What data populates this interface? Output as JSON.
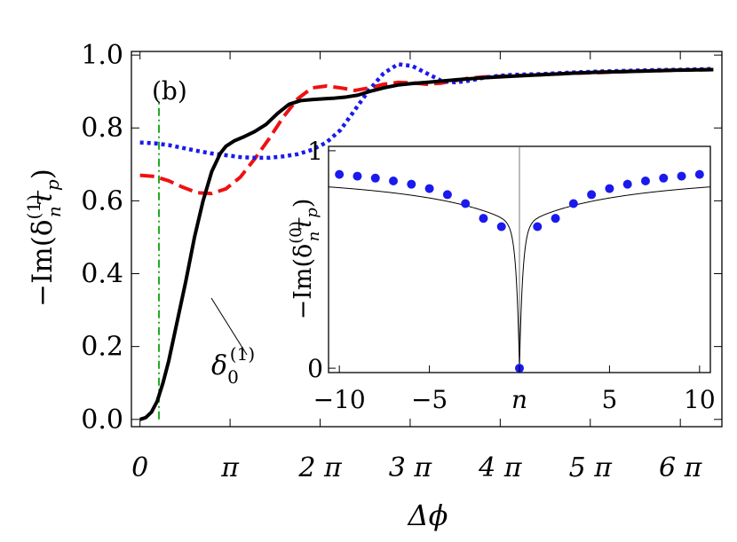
{
  "chart_data": {
    "type": "line",
    "panel_label": "(b)",
    "xlabel": "Δϕ",
    "ylabel": {
      "prefix": "−Im(δ",
      "sup": "(1)",
      "sub": "n",
      "suffix": "τ",
      "suffix_sub": "p",
      "close": ")"
    },
    "xlim": [
      -0.3,
      20.3
    ],
    "ylim": [
      -0.02,
      1.01
    ],
    "x_unit": "pi",
    "xticks": [
      {
        "value": 0,
        "label": "0"
      },
      {
        "value": 3.14159,
        "label": "π"
      },
      {
        "value": 6.28319,
        "label": "2 π"
      },
      {
        "value": 9.42478,
        "label": "3 π"
      },
      {
        "value": 12.56637,
        "label": "4 π"
      },
      {
        "value": 15.70796,
        "label": "5 π"
      },
      {
        "value": 18.84956,
        "label": "6 π"
      }
    ],
    "yticks": [
      {
        "value": 0.0,
        "label": "0.0"
      },
      {
        "value": 0.2,
        "label": "0.2"
      },
      {
        "value": 0.4,
        "label": "0.4"
      },
      {
        "value": 0.6,
        "label": "0.6"
      },
      {
        "value": 0.8,
        "label": "0.8"
      },
      {
        "value": 1.0,
        "label": "1.0"
      }
    ],
    "vline": {
      "x": 0.66,
      "color": "#22aa22",
      "style": "dashdot"
    },
    "series": [
      {
        "name": "delta0",
        "color": "#000000",
        "style": "solid",
        "x": [
          0,
          0.2,
          0.4,
          0.6,
          0.8,
          1.0,
          1.3,
          1.6,
          1.9,
          2.2,
          2.5,
          2.8,
          3.0,
          3.3,
          3.6,
          4.0,
          4.4,
          4.8,
          5.2,
          5.6,
          6.0,
          6.4,
          6.8,
          7.2,
          7.6,
          8.0,
          8.5,
          9.0,
          9.5,
          10.0,
          11.0,
          12.0,
          13.0,
          14.0,
          15.0,
          16.0,
          17.0,
          18.0,
          19.0,
          20.0
        ],
        "y": [
          0.0,
          0.005,
          0.02,
          0.05,
          0.1,
          0.16,
          0.27,
          0.38,
          0.5,
          0.6,
          0.68,
          0.73,
          0.75,
          0.765,
          0.775,
          0.79,
          0.81,
          0.84,
          0.865,
          0.875,
          0.878,
          0.88,
          0.882,
          0.885,
          0.89,
          0.9,
          0.91,
          0.918,
          0.922,
          0.925,
          0.932,
          0.938,
          0.942,
          0.946,
          0.95,
          0.953,
          0.955,
          0.957,
          0.959,
          0.96
        ]
      },
      {
        "name": "red",
        "color": "#ee1111",
        "style": "dashed",
        "x": [
          0,
          0.5,
          1.0,
          1.5,
          2.0,
          2.5,
          3.0,
          3.5,
          4.0,
          4.5,
          5.0,
          5.5,
          6.0,
          6.5,
          7.0,
          7.5,
          8.0,
          8.5,
          9.0,
          9.5,
          10.0,
          10.5,
          11.0,
          11.5,
          12.0,
          13.0,
          14.0,
          15.0,
          16.0,
          17.0,
          18.0,
          19.0,
          20.0
        ],
        "y": [
          0.67,
          0.667,
          0.655,
          0.637,
          0.622,
          0.62,
          0.633,
          0.665,
          0.715,
          0.77,
          0.83,
          0.88,
          0.91,
          0.915,
          0.91,
          0.903,
          0.91,
          0.92,
          0.925,
          0.924,
          0.92,
          0.923,
          0.93,
          0.937,
          0.94,
          0.943,
          0.946,
          0.95,
          0.952,
          0.955,
          0.957,
          0.959,
          0.96
        ]
      },
      {
        "name": "blue",
        "color": "#1a1aee",
        "style": "dotted",
        "x": [
          0,
          0.5,
          1.0,
          1.5,
          2.0,
          2.5,
          3.0,
          3.5,
          4.0,
          4.5,
          5.0,
          5.5,
          6.0,
          6.5,
          7.0,
          7.5,
          8.0,
          8.5,
          9.0,
          9.5,
          10.0,
          10.5,
          11.0,
          11.5,
          12.0,
          12.5,
          13.0,
          14.0,
          15.0,
          16.0,
          17.0,
          18.0,
          19.0,
          20.0
        ],
        "y": [
          0.76,
          0.758,
          0.753,
          0.745,
          0.737,
          0.73,
          0.725,
          0.72,
          0.718,
          0.718,
          0.722,
          0.728,
          0.74,
          0.76,
          0.795,
          0.85,
          0.905,
          0.95,
          0.975,
          0.97,
          0.95,
          0.93,
          0.925,
          0.93,
          0.938,
          0.943,
          0.946,
          0.948,
          0.952,
          0.955,
          0.957,
          0.959,
          0.96,
          0.962
        ]
      }
    ],
    "annotation": {
      "base": "δ",
      "sub": "0",
      "sup": "(1)",
      "x": 1.55,
      "y": 0.36
    },
    "inset": {
      "type": "scatter",
      "xlabel": "n",
      "ylabel": {
        "prefix": "−Im(δ",
        "sup": "(0)",
        "sub": "n",
        "suffix": "τ",
        "suffix_sub": "p",
        "close": ")"
      },
      "xlim": [
        -10.6,
        10.6
      ],
      "ylim": [
        -0.02,
        1.02
      ],
      "xticks": [
        {
          "value": -10,
          "label": "−10"
        },
        {
          "value": -5,
          "label": "−5"
        },
        {
          "value": 0,
          "label": "n"
        },
        {
          "value": 5,
          "label": "5"
        },
        {
          "value": 10,
          "label": "10"
        }
      ],
      "yticks": [
        {
          "value": 0,
          "label": "0"
        },
        {
          "value": 1,
          "label": "1"
        }
      ],
      "point_color": "#1a1aee",
      "points": [
        {
          "n": -10,
          "v": 0.891
        },
        {
          "n": -9,
          "v": 0.883
        },
        {
          "n": -8,
          "v": 0.874
        },
        {
          "n": -7,
          "v": 0.861
        },
        {
          "n": -6,
          "v": 0.846
        },
        {
          "n": -5,
          "v": 0.826
        },
        {
          "n": -4,
          "v": 0.798
        },
        {
          "n": -3,
          "v": 0.757
        },
        {
          "n": -2,
          "v": 0.689
        },
        {
          "n": -1,
          "v": 0.651
        },
        {
          "n": 0,
          "v": 0.0
        },
        {
          "n": 1,
          "v": 0.651
        },
        {
          "n": 2,
          "v": 0.689
        },
        {
          "n": 3,
          "v": 0.757
        },
        {
          "n": 4,
          "v": 0.798
        },
        {
          "n": 5,
          "v": 0.826
        },
        {
          "n": 6,
          "v": 0.846
        },
        {
          "n": 7,
          "v": 0.861
        },
        {
          "n": 8,
          "v": 0.874
        },
        {
          "n": 9,
          "v": 0.883
        },
        {
          "n": 10,
          "v": 0.891
        }
      ]
    }
  }
}
